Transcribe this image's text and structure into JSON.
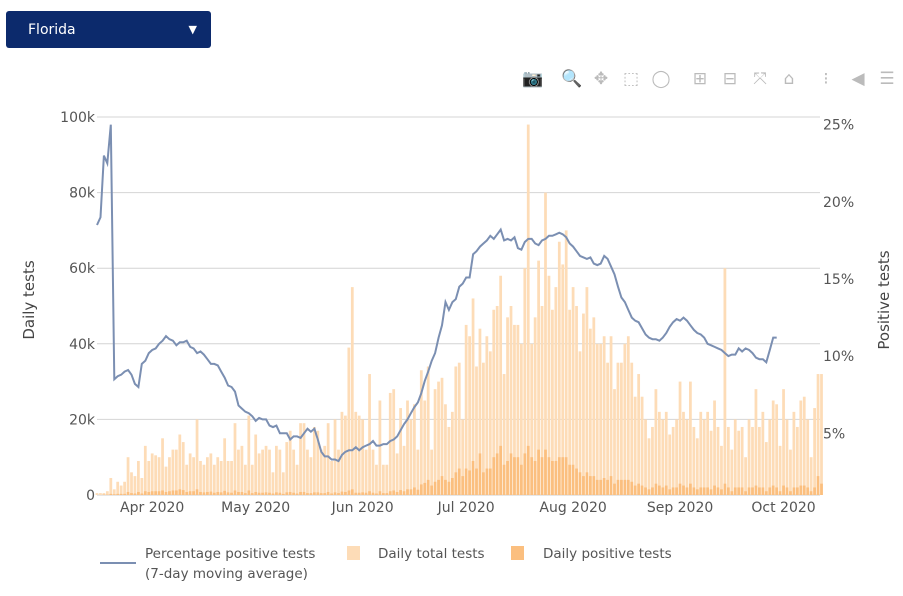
{
  "dropdown": {
    "selected": "Florida"
  },
  "toolbar": [
    {
      "name": "camera-icon",
      "glyph": "📷"
    },
    {
      "name": "zoom-icon",
      "glyph": "🔍",
      "active": true
    },
    {
      "name": "pan-icon",
      "glyph": "✥"
    },
    {
      "name": "box-select-icon",
      "glyph": "⬚"
    },
    {
      "name": "lasso-select-icon",
      "glyph": "◯"
    },
    {
      "name": "zoom-in-icon",
      "glyph": "⊞"
    },
    {
      "name": "zoom-out-icon",
      "glyph": "⊟"
    },
    {
      "name": "autoscale-icon",
      "glyph": "⤧"
    },
    {
      "name": "reset-axes-home-icon",
      "glyph": "⌂"
    },
    {
      "name": "spike-lines-icon",
      "glyph": "⁝"
    },
    {
      "name": "hover-closest-icon",
      "glyph": "◀"
    },
    {
      "name": "hover-compare-icon",
      "glyph": "☰"
    }
  ],
  "chart_data": {
    "type": "bar+line",
    "x_range": [
      "2020-03-16",
      "2020-10-12"
    ],
    "frequency": "daily",
    "xticks": [
      "Apr 2020",
      "May 2020",
      "Jun 2020",
      "Jul 2020",
      "Aug 2020",
      "Sep 2020",
      "Oct 2020"
    ],
    "xtick_dates": [
      "2020-04-01",
      "2020-05-01",
      "2020-06-01",
      "2020-07-01",
      "2020-08-01",
      "2020-09-01",
      "2020-10-01"
    ],
    "ylabel": "Daily tests",
    "y2label": "Positive tests",
    "ylim": [
      0,
      100000
    ],
    "y2lim": [
      1,
      25.5
    ],
    "yticks": [
      "0",
      "20k",
      "40k",
      "60k",
      "80k",
      "100k"
    ],
    "ytick_values": [
      0,
      20000,
      40000,
      60000,
      80000,
      100000
    ],
    "y2ticks": [
      "5%",
      "10%",
      "15%",
      "20%",
      "25%"
    ],
    "y2tick_values": [
      5,
      10,
      15,
      20,
      25
    ],
    "grid": true,
    "legend_position": "bottom",
    "colors": {
      "line": "#7b8fb2",
      "total": "#fddcb7",
      "positive": "#fbbf7f",
      "grid": "#d4d4d4"
    },
    "series": [
      {
        "name": "Percentage positive tests",
        "name2": "(7-day moving average)",
        "type": "line",
        "axis": "right",
        "values": [
          18.5,
          19,
          23,
          22.5,
          25,
          8.5,
          8.7,
          8.8,
          9,
          9.1,
          8.8,
          8.2,
          8,
          9.5,
          9.7,
          10.2,
          10.4,
          10.5,
          10.8,
          11,
          11.3,
          11.1,
          11,
          10.7,
          10.9,
          10.9,
          11,
          10.6,
          10.5,
          10.2,
          10.3,
          10.1,
          9.8,
          9.5,
          9.5,
          9.4,
          9,
          8.6,
          8.1,
          8,
          7.7,
          6.8,
          6.6,
          6.4,
          6.3,
          6.1,
          5.8,
          6,
          5.9,
          5.9,
          5.5,
          5.4,
          5.5,
          5,
          5,
          5,
          4.6,
          4.8,
          4.8,
          4.7,
          5,
          5.3,
          5.1,
          5.3,
          4.6,
          3.8,
          3.5,
          3.5,
          3.3,
          3.3,
          3.2,
          3.6,
          3.8,
          3.9,
          3.9,
          4.1,
          3.9,
          4.1,
          4.2,
          4.3,
          4.5,
          4.2,
          4.2,
          4.3,
          4.3,
          4.5,
          4.6,
          4.8,
          5.2,
          5.6,
          5.9,
          6.3,
          6.7,
          7,
          7.6,
          8.4,
          9,
          9.7,
          10.2,
          11.2,
          12,
          13.5,
          13,
          13.5,
          13.7,
          14.5,
          14.7,
          15.1,
          15.1,
          16.6,
          16.8,
          17.1,
          17.3,
          17.5,
          17.8,
          17.6,
          17.9,
          18.2,
          17.5,
          17.6,
          17.5,
          17.7,
          17,
          16.9,
          17.4,
          17.6,
          17.6,
          17.3,
          17.2,
          17.5,
          17.6,
          17.8,
          17.8,
          17.9,
          18,
          17.9,
          17.7,
          17.3,
          17.1,
          16.8,
          16.5,
          16.4,
          16.3,
          16.4,
          16,
          15.9,
          16,
          16.5,
          16.3,
          15.8,
          15.3,
          14.5,
          13.8,
          13.5,
          13,
          12.5,
          12.3,
          12.2,
          11.8,
          11.4,
          11.2,
          11.1,
          11.1,
          11,
          11.2,
          11.5,
          11.9,
          12.2,
          12.4,
          12.3,
          12.5,
          12.3,
          12,
          11.7,
          11.5,
          11.4,
          11.2,
          10.8,
          10.7,
          10.6,
          10.5,
          10.4,
          10.2,
          10,
          10.1,
          10.1,
          10.5,
          10.3,
          10.5,
          10.4,
          10.2,
          9.9,
          9.8,
          9.8,
          9.6,
          10.4,
          11.2,
          11.2
        ]
      },
      {
        "name": "Daily total tests",
        "type": "bar",
        "axis": "left",
        "values": [
          500,
          500,
          500,
          1000,
          4500,
          1500,
          3500,
          2500,
          3500,
          10000,
          6000,
          5000,
          9000,
          4500,
          13000,
          9000,
          11000,
          10500,
          10000,
          15000,
          7500,
          10000,
          12000,
          12000,
          16000,
          14000,
          8000,
          11000,
          10000,
          20000,
          9000,
          8000,
          10000,
          11000,
          8000,
          10000,
          9000,
          15000,
          9000,
          9000,
          19000,
          12000,
          13000,
          8000,
          21000,
          8000,
          16000,
          11000,
          12000,
          13000,
          12000,
          6000,
          13000,
          12000,
          6000,
          14000,
          17000,
          12000,
          8000,
          19000,
          19000,
          12000,
          10000,
          18000,
          17000,
          12000,
          13000,
          19000,
          9000,
          20000,
          12000,
          22000,
          21000,
          39000,
          55000,
          22000,
          21000,
          20000,
          12000,
          32000,
          12000,
          8000,
          25000,
          8000,
          8000,
          27000,
          28000,
          11000,
          23000,
          13000,
          25000,
          20000,
          24000,
          12000,
          33000,
          25000,
          34000,
          12000,
          28000,
          30000,
          31000,
          24000,
          18000,
          22000,
          34000,
          35000,
          20000,
          45000,
          42000,
          52000,
          34000,
          44000,
          35000,
          42000,
          38000,
          49000,
          50000,
          58000,
          32000,
          47000,
          50000,
          45000,
          45000,
          40000,
          60000,
          98000,
          40000,
          47000,
          62000,
          50000,
          80000,
          58000,
          49000,
          55000,
          67000,
          61000,
          70000,
          49000,
          55000,
          50000,
          38000,
          48000,
          55000,
          44000,
          47000,
          40000,
          40000,
          42000,
          35000,
          42000,
          28000,
          35000,
          35000,
          40000,
          42000,
          35000,
          26000,
          32000,
          26000,
          20000,
          15000,
          18000,
          28000,
          22000,
          20000,
          22000,
          16000,
          18000,
          20000,
          30000,
          22000,
          20000,
          30000,
          18000,
          15000,
          22000,
          20000,
          22000,
          17000,
          25000,
          18000,
          13000,
          60000,
          18000,
          12000,
          20000,
          17000,
          18000,
          10000,
          20000,
          18000,
          28000,
          18000,
          22000,
          14000,
          20000,
          25000,
          24000,
          13000,
          28000,
          20000,
          12000,
          22000,
          18000,
          25000,
          26000,
          20000,
          10000,
          23000,
          32000,
          32000
        ]
      },
      {
        "name": "Daily positive tests",
        "type": "bar",
        "axis": "left",
        "values": [
          0,
          0,
          100,
          100,
          300,
          200,
          300,
          300,
          300,
          800,
          500,
          400,
          800,
          400,
          1000,
          800,
          1000,
          1000,
          1000,
          1200,
          800,
          1000,
          1200,
          1200,
          1500,
          1300,
          800,
          1000,
          1000,
          1500,
          800,
          700,
          800,
          900,
          600,
          800,
          700,
          1100,
          700,
          600,
          1200,
          800,
          800,
          500,
          1200,
          500,
          800,
          600,
          600,
          700,
          600,
          400,
          700,
          600,
          300,
          700,
          800,
          600,
          400,
          800,
          800,
          500,
          500,
          700,
          700,
          500,
          500,
          800,
          400,
          700,
          500,
          900,
          800,
          1200,
          1500,
          600,
          600,
          700,
          600,
          1000,
          600,
          400,
          1000,
          500,
          500,
          1000,
          1200,
          800,
          1300,
          1000,
          1500,
          1500,
          2000,
          1400,
          2800,
          3200,
          4000,
          2500,
          3500,
          4000,
          5000,
          4000,
          3500,
          4500,
          6000,
          7000,
          5000,
          7000,
          6500,
          9000,
          7000,
          11000,
          6000,
          7000,
          7000,
          10000,
          11000,
          13000,
          8000,
          9000,
          11000,
          10000,
          10000,
          8000,
          11000,
          13000,
          10000,
          9000,
          12000,
          10000,
          12000,
          10000,
          9000,
          9000,
          10000,
          10000,
          10000,
          8000,
          8000,
          7000,
          6000,
          5000,
          6000,
          5000,
          5000,
          4000,
          4000,
          4500,
          4000,
          5000,
          3000,
          4000,
          4000,
          4000,
          4000,
          3500,
          2500,
          3000,
          2500,
          2000,
          1500,
          2000,
          3000,
          2500,
          2000,
          2500,
          1500,
          2000,
          2000,
          3000,
          2500,
          2000,
          3000,
          2000,
          1500,
          2000,
          2000,
          2000,
          1500,
          2500,
          2000,
          1500,
          3000,
          2000,
          1000,
          2000,
          2000,
          2000,
          1000,
          2000,
          2000,
          2500,
          2000,
          2000,
          1000,
          2000,
          2500,
          2000,
          1000,
          2500,
          2000,
          1000,
          2000,
          2000,
          2500,
          2500,
          2000,
          1000,
          2000,
          5000,
          3000
        ]
      }
    ]
  }
}
